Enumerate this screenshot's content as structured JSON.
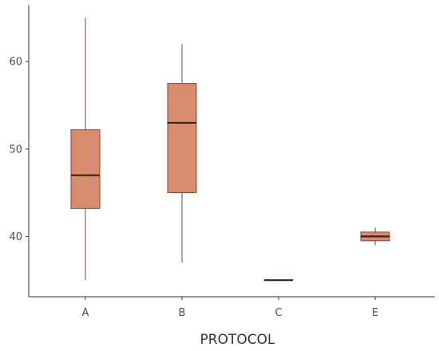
{
  "chart_data": {
    "type": "box",
    "title": "",
    "xlabel": "PROTOCOL",
    "ylabel": "",
    "categories": [
      "A",
      "B",
      "C",
      "E"
    ],
    "boxes": [
      {
        "category": "A",
        "min": 35,
        "q1": 43.2,
        "median": 47,
        "q3": 52.2,
        "max": 65
      },
      {
        "category": "B",
        "min": 37,
        "q1": 45,
        "median": 53,
        "q3": 57.5,
        "max": 62
      },
      {
        "category": "C",
        "min": 35,
        "q1": 35,
        "median": 35,
        "q3": 35,
        "max": 35
      },
      {
        "category": "E",
        "min": 39,
        "q1": 39.5,
        "median": 40,
        "q3": 40.5,
        "max": 41
      }
    ],
    "yticks": [
      40,
      50,
      60
    ],
    "ylim": [
      33.1,
      66.5
    ],
    "grid": false,
    "legend": "none",
    "colors": {
      "box_fill": "#d98b6e",
      "box_stroke": "#7a4a3a",
      "median": "#3b1f1a",
      "axis": "#333333"
    }
  }
}
